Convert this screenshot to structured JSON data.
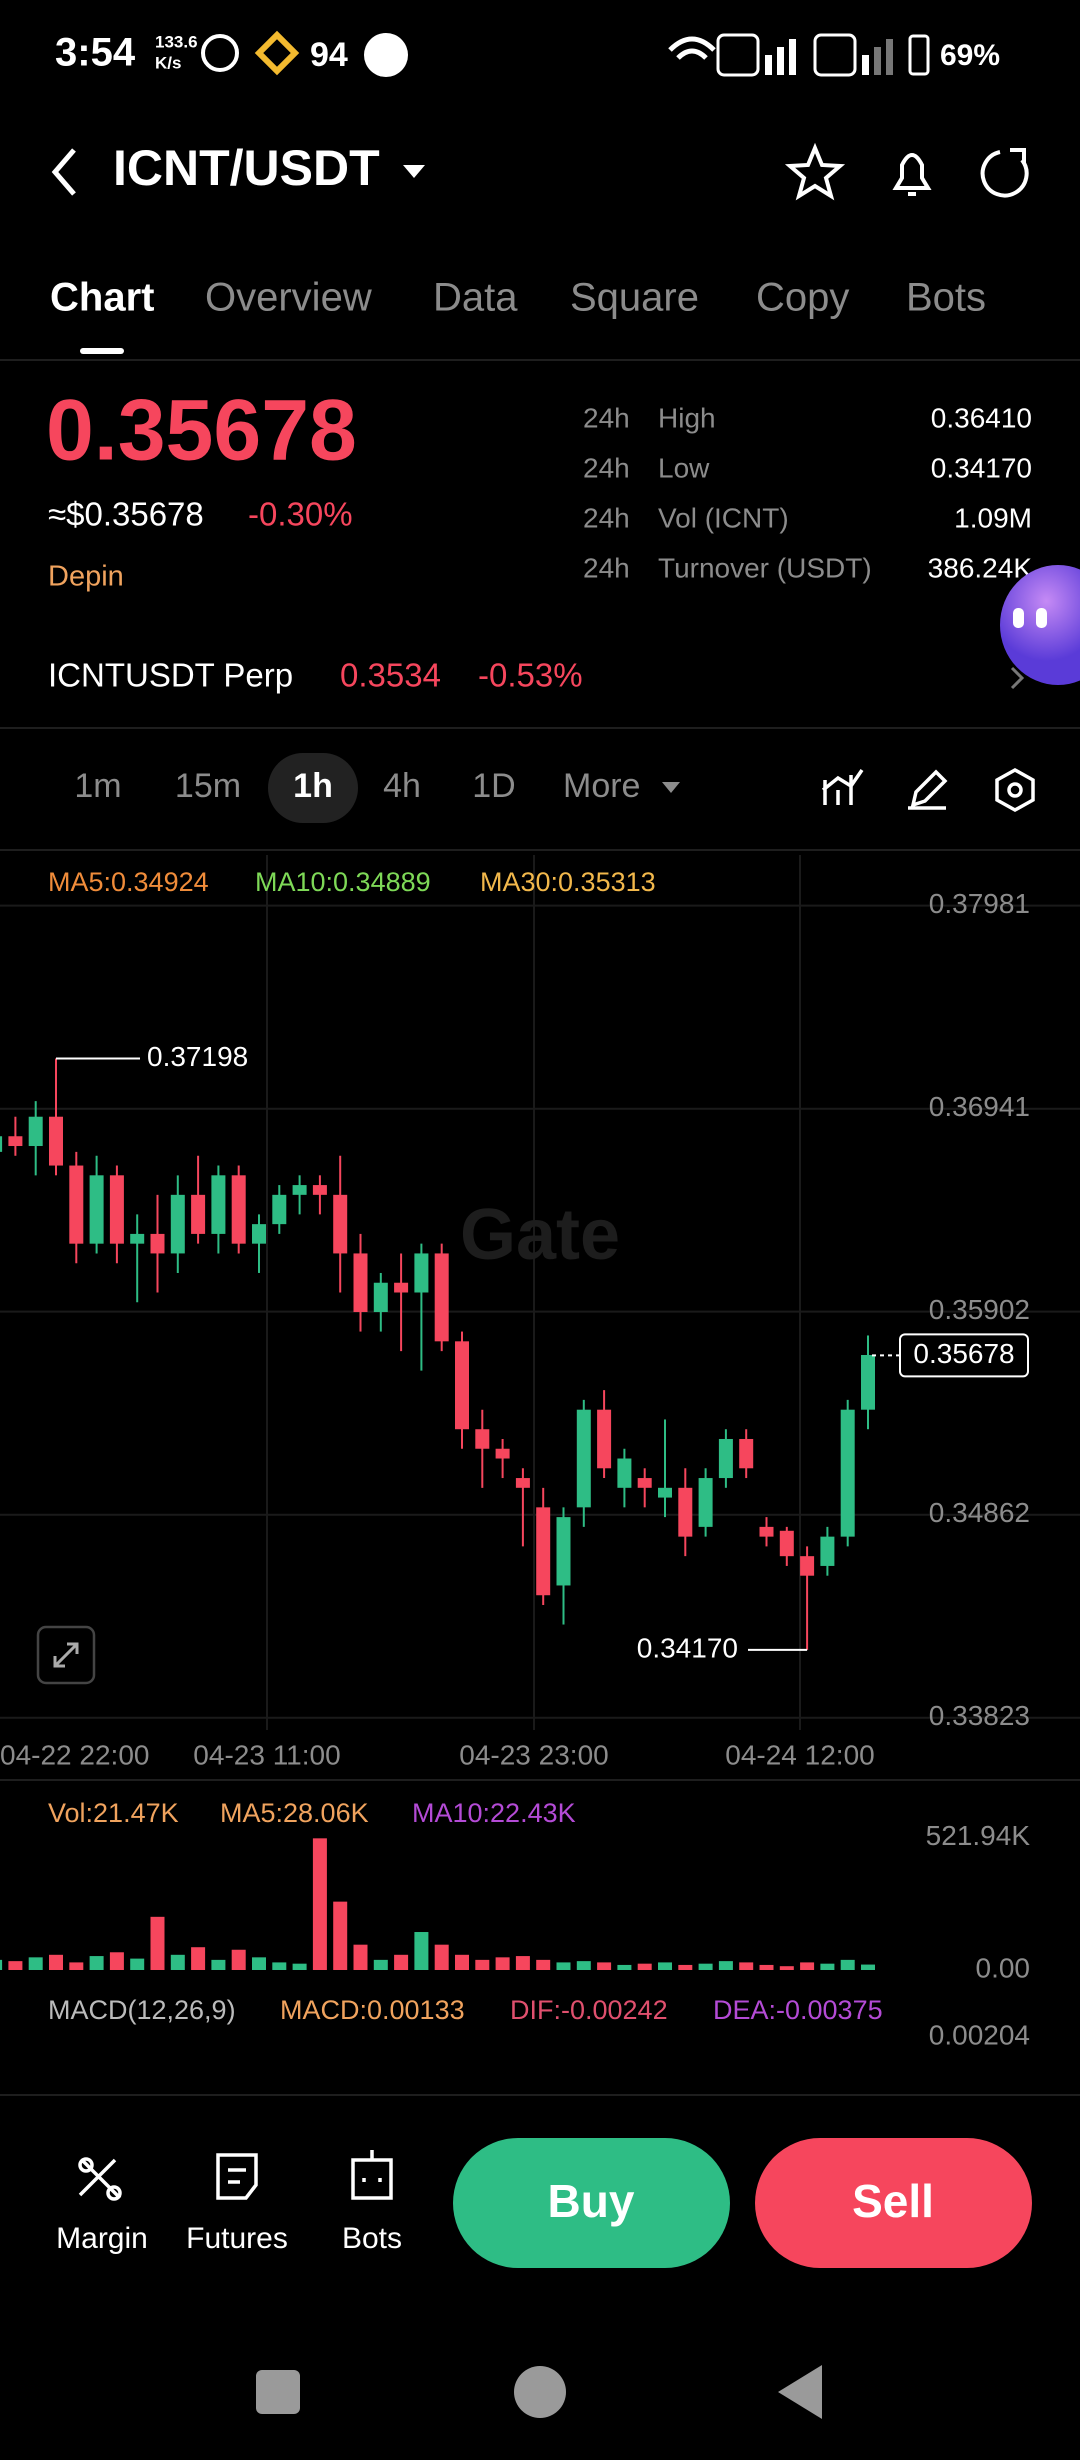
{
  "status_bar": {
    "time": "3:54",
    "net_speed": "133.6",
    "net_unit": "K/s",
    "badge": "94",
    "battery": "69%"
  },
  "header": {
    "pair": "ICNT/USDT"
  },
  "tabs": [
    "Chart",
    "Overview",
    "Data",
    "Square",
    "Copy",
    "Bots"
  ],
  "ticker": {
    "price": "0.35678",
    "usd_price": "≈$0.35678",
    "change": "-0.30%",
    "tag": "Depin",
    "stats": [
      {
        "period": "24h",
        "label": "High",
        "value": "0.36410"
      },
      {
        "period": "24h",
        "label": "Low",
        "value": "0.34170"
      },
      {
        "period": "24h",
        "label": "Vol (ICNT)",
        "value": "1.09M"
      },
      {
        "period": "24h",
        "label": "Turnover (USDT)",
        "value": "386.24K"
      }
    ]
  },
  "perp": {
    "name": "ICNTUSDT Perp",
    "price": "0.3534",
    "change": "-0.53%"
  },
  "intervals": [
    "1m",
    "15m",
    "1h",
    "4h",
    "1D",
    "More"
  ],
  "chart_data": [
    {
      "type": "candlestick",
      "legend": [
        "MA5:0.34924",
        "MA10:0.34889",
        "MA30:0.35313"
      ],
      "watermark": "Gate",
      "up_color": "#2ebd85",
      "down_color": "#f6465d",
      "open": [
        0.3672,
        0.368,
        0.3675,
        0.369,
        0.3665,
        0.3625,
        0.366,
        0.3625,
        0.363,
        0.362,
        0.365,
        0.363,
        0.366,
        0.3625,
        0.3635,
        0.365,
        0.3655,
        0.365,
        0.362,
        0.359,
        0.3605,
        0.36,
        0.362,
        0.3575,
        0.353,
        0.352,
        0.3505,
        0.349,
        0.345,
        0.349,
        0.354,
        0.35,
        0.3505,
        0.3495,
        0.35,
        0.348,
        0.3505,
        0.3525,
        0.348,
        0.3478,
        0.3465,
        0.346,
        0.3475,
        0.354
      ],
      "high": [
        0.3685,
        0.369,
        0.3698,
        0.37198,
        0.3672,
        0.367,
        0.3665,
        0.364,
        0.365,
        0.366,
        0.367,
        0.3665,
        0.3665,
        0.364,
        0.3655,
        0.366,
        0.366,
        0.367,
        0.363,
        0.361,
        0.362,
        0.3625,
        0.3625,
        0.358,
        0.354,
        0.3525,
        0.351,
        0.35,
        0.349,
        0.3545,
        0.355,
        0.352,
        0.351,
        0.3535,
        0.351,
        0.351,
        0.353,
        0.353,
        0.3485,
        0.348,
        0.347,
        0.348,
        0.3545,
        0.3578
      ],
      "low": [
        0.366,
        0.367,
        0.366,
        0.366,
        0.3615,
        0.362,
        0.3615,
        0.3595,
        0.36,
        0.361,
        0.3625,
        0.362,
        0.362,
        0.361,
        0.363,
        0.364,
        0.364,
        0.36,
        0.358,
        0.358,
        0.357,
        0.356,
        0.357,
        0.352,
        0.35,
        0.3505,
        0.347,
        0.344,
        0.343,
        0.348,
        0.3505,
        0.349,
        0.349,
        0.3485,
        0.3465,
        0.3475,
        0.35,
        0.3505,
        0.347,
        0.346,
        0.3417,
        0.3455,
        0.347,
        0.353
      ],
      "close": [
        0.368,
        0.3675,
        0.369,
        0.3665,
        0.3625,
        0.366,
        0.3625,
        0.363,
        0.362,
        0.365,
        0.363,
        0.366,
        0.3625,
        0.3635,
        0.365,
        0.3655,
        0.365,
        0.362,
        0.359,
        0.3605,
        0.36,
        0.362,
        0.3575,
        0.353,
        0.352,
        0.3515,
        0.35,
        0.3445,
        0.3485,
        0.354,
        0.351,
        0.3515,
        0.35,
        0.35,
        0.3475,
        0.3505,
        0.3525,
        0.351,
        0.3475,
        0.3465,
        0.3455,
        0.3475,
        0.354,
        0.3568
      ],
      "ylim": [
        0.3376,
        0.3824
      ],
      "yticks": [
        0.37981,
        0.36941,
        0.35902,
        0.34862,
        0.33823
      ],
      "high_label": 0.37198,
      "low_label": {
        "value": 0.3417,
        "label": "0.34170"
      },
      "last_price": 0.35678,
      "xlabels": [
        "04-22 22:00",
        "04-23 11:00",
        "04-23 23:00",
        "04-24 12:00"
      ]
    },
    {
      "type": "bar",
      "legend": [
        "Vol:21.47K",
        "MA5:28.06K",
        "MA10:22.43K"
      ],
      "values": [
        40,
        35,
        50,
        60,
        30,
        55,
        70,
        45,
        210,
        60,
        90,
        40,
        80,
        50,
        30,
        25,
        520,
        270,
        100,
        40,
        60,
        150,
        100,
        60,
        40,
        50,
        55,
        40,
        30,
        35,
        30,
        20,
        25,
        30,
        20,
        25,
        35,
        30,
        20,
        15,
        30,
        25,
        40,
        21.47
      ],
      "ylim": [
        0,
        545
      ],
      "yticks": [
        {
          "value": 521.94,
          "label": "521.94K"
        },
        {
          "value": 0,
          "label": "0.00"
        }
      ]
    }
  ],
  "macd": {
    "name": "MACD(12,26,9)",
    "macd": "MACD:0.00133",
    "dif": "DIF:-0.00242",
    "dea": "DEA:-0.00375",
    "axis": "0.00204"
  },
  "actions": [
    "Margin",
    "Futures",
    "Bots"
  ],
  "buy": "Buy",
  "sell": "Sell"
}
